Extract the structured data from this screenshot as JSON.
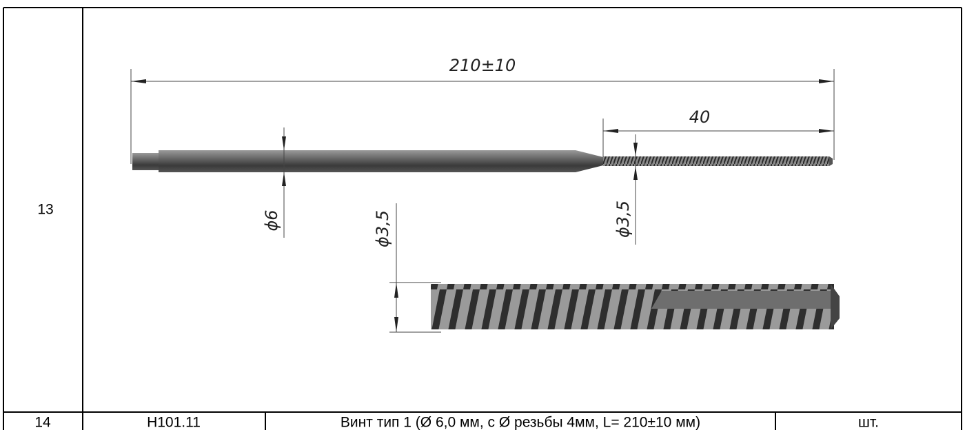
{
  "table": {
    "rows": [
      {
        "number": "13",
        "drawing": {
          "dimensions": [
            "210±10",
            "40",
            "ϕ6",
            "ϕ3,5",
            "ϕ3,5"
          ]
        }
      },
      {
        "cells": [
          "14",
          "H101.11",
          "Винт тип 1 (Ø 6,0 мм, с Ø резьбы 4мм, L= 210±10 мм)",
          "шт."
        ]
      }
    ]
  }
}
